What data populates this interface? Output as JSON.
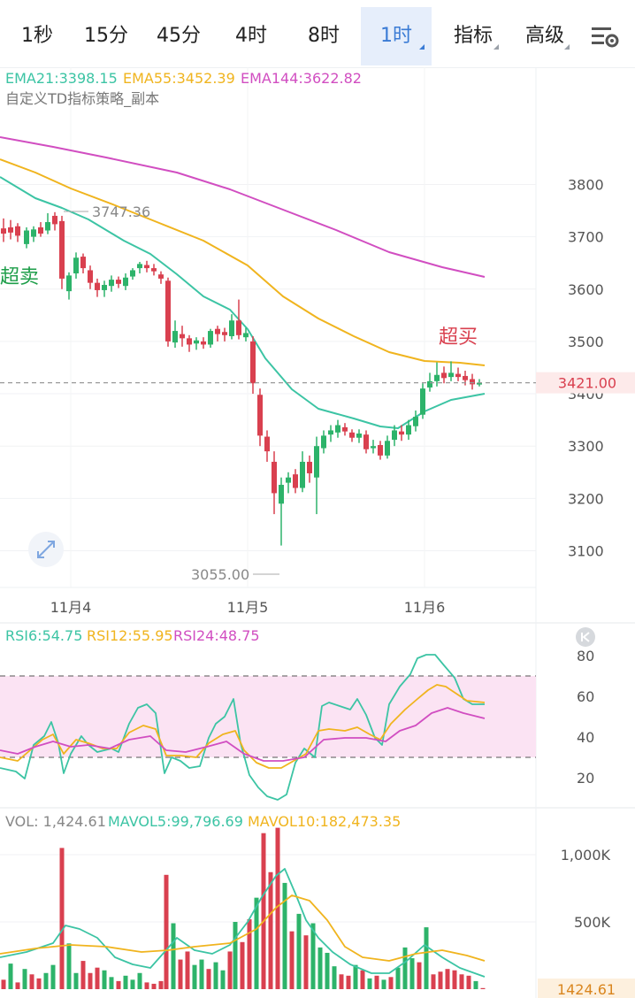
{
  "tabs": [
    {
      "label": "1秒",
      "active": false,
      "dropdown": false
    },
    {
      "label": "15分",
      "active": false,
      "dropdown": false
    },
    {
      "label": "45分",
      "active": false,
      "dropdown": false
    },
    {
      "label": "4时",
      "active": false,
      "dropdown": false
    },
    {
      "label": "8时",
      "active": false,
      "dropdown": false
    },
    {
      "label": "1时",
      "active": true,
      "dropdown": true
    },
    {
      "label": "指标",
      "active": false,
      "dropdown": true
    },
    {
      "label": "高级",
      "active": false,
      "dropdown": true
    }
  ],
  "settings_icon": "chart-settings-icon",
  "main_chart": {
    "legend": [
      {
        "text": "EMA21:3398.15",
        "color": "#3cc4a4"
      },
      {
        "text": "EMA55:3452.39",
        "color": "#f0b41e"
      },
      {
        "text": "EMA144:3622.82",
        "color": "#d14ec1"
      }
    ],
    "strategy_label": "自定义TD指标策略_副本",
    "price_ticks": [
      "3800",
      "3700",
      "3600",
      "3500",
      "3400",
      "3300",
      "3200",
      "3100"
    ],
    "price_tick_values": [
      3800,
      3700,
      3600,
      3500,
      3400,
      3300,
      3200,
      3100
    ],
    "current_price": "3421.00",
    "current_price_value": 3421,
    "high_label": "3747.36",
    "low_label": "3055.00",
    "oversold_label": "超卖",
    "overbought_label": "超买",
    "date_labels": [
      "11月4",
      "11月5",
      "11月6"
    ],
    "expand_icon": "expand-arrows-icon"
  },
  "rsi": {
    "legend": [
      {
        "text": "RSI6:54.75",
        "color": "#3cc4a4"
      },
      {
        "text": "RSI12:55.95",
        "color": "#f0b41e"
      },
      {
        "text": "RSI24:48.75",
        "color": "#d14ec1"
      }
    ],
    "ticks": [
      "80",
      "60",
      "40",
      "20"
    ],
    "tick_values": [
      80,
      60,
      40,
      20
    ],
    "upper_level": 70,
    "lower_level": 30,
    "icon": "collapse-icon"
  },
  "volume": {
    "legend": [
      {
        "text": "VOL: 1,424.61",
        "color": "#888888"
      },
      {
        "text": "MAVOL5:99,796.69",
        "color": "#3cc4a4"
      },
      {
        "text": "MAVOL10:182,473.35",
        "color": "#f0b41e"
      }
    ],
    "ticks": [
      "1,000K",
      "500K"
    ],
    "tick_values": [
      1000000,
      500000
    ],
    "current_label": "1424.61"
  },
  "colors": {
    "up": "#2db36a",
    "down": "#d9404f",
    "ema21": "#3cc4a4",
    "ema55": "#f0b41e",
    "ema144": "#d14ec1",
    "rsi_band": "#fbe3f3"
  }
}
